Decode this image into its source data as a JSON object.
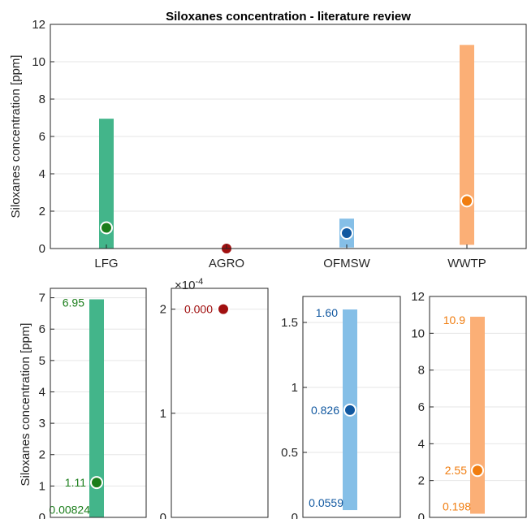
{
  "chart_data": [
    {
      "type": "range-bar",
      "title": "Siloxanes concentration - literature review",
      "ylabel": "Siloxanes concentration [ppm]",
      "xlabel": "",
      "ylim": [
        0,
        12
      ],
      "yticks": [
        "0",
        "2",
        "4",
        "6",
        "8",
        "10",
        "12"
      ],
      "grid": "horizontal",
      "categories": [
        "LFG",
        "AGRO",
        "OFMSW",
        "WWTP"
      ],
      "series": [
        {
          "category": "LFG",
          "min": 0.00824,
          "max": 6.95,
          "mean": 1.11,
          "bar_color": "#43b58a",
          "marker_color": "#1a7d1a"
        },
        {
          "category": "AGRO",
          "min": 0.0002,
          "max": 0.0002,
          "mean": 0.0002,
          "bar_color": "#43b58a",
          "marker_color": "#a11010"
        },
        {
          "category": "OFMSW",
          "min": 0.0559,
          "max": 1.6,
          "mean": 0.826,
          "bar_color": "#85bfe7",
          "marker_color": "#1158a0"
        },
        {
          "category": "WWTP",
          "min": 0.198,
          "max": 10.9,
          "mean": 2.55,
          "bar_color": "#fbaf76",
          "marker_color": "#f07d10"
        }
      ]
    },
    {
      "type": "range-bar",
      "category": "LFG",
      "ylabel": "Siloxanes concentration [ppm]",
      "ylim": [
        0,
        7.3
      ],
      "yticks": [
        "0",
        "1",
        "2",
        "3",
        "4",
        "5",
        "6",
        "7"
      ],
      "grid": "horizontal",
      "min": 0.00824,
      "max": 6.95,
      "mean": 1.11,
      "labels": {
        "max": "6.95",
        "mean": "1.11",
        "min": "0.00824"
      },
      "bar_color": "#43b58a",
      "marker_color": "#1a7d1a",
      "label_color": "#1a7d1a"
    },
    {
      "type": "range-bar",
      "category": "AGRO",
      "ylim": [
        0,
        0.00022
      ],
      "yticks": [
        "0",
        "1",
        "2"
      ],
      "exponent_label": "×10",
      "exponent_power": "-4",
      "grid": "horizontal",
      "min": 0.0002,
      "max": 0.0002,
      "mean": 0.0002,
      "labels": {
        "mean": "0.000"
      },
      "bar_color": "#43b58a",
      "marker_color": "#a11010",
      "label_color": "#a11010"
    },
    {
      "type": "range-bar",
      "category": "OFMSW",
      "ylim": [
        0,
        1.7
      ],
      "yticks": [
        "0",
        "0.5",
        "1",
        "1.5"
      ],
      "grid": "horizontal",
      "min": 0.0559,
      "max": 1.6,
      "mean": 0.826,
      "labels": {
        "max": "1.60",
        "mean": "0.826",
        "min": "0.0559"
      },
      "bar_color": "#85bfe7",
      "marker_color": "#1158a0",
      "label_color": "#1158a0"
    },
    {
      "type": "range-bar",
      "category": "WWTP",
      "ylim": [
        0,
        12
      ],
      "yticks": [
        "0",
        "2",
        "4",
        "6",
        "8",
        "10",
        "12"
      ],
      "grid": "horizontal",
      "min": 0.198,
      "max": 10.9,
      "mean": 2.55,
      "labels": {
        "max": "10.9",
        "mean": "2.55",
        "min": "0.198"
      },
      "bar_color": "#fbaf76",
      "marker_color": "#f07d10",
      "label_color": "#f07d10"
    }
  ]
}
